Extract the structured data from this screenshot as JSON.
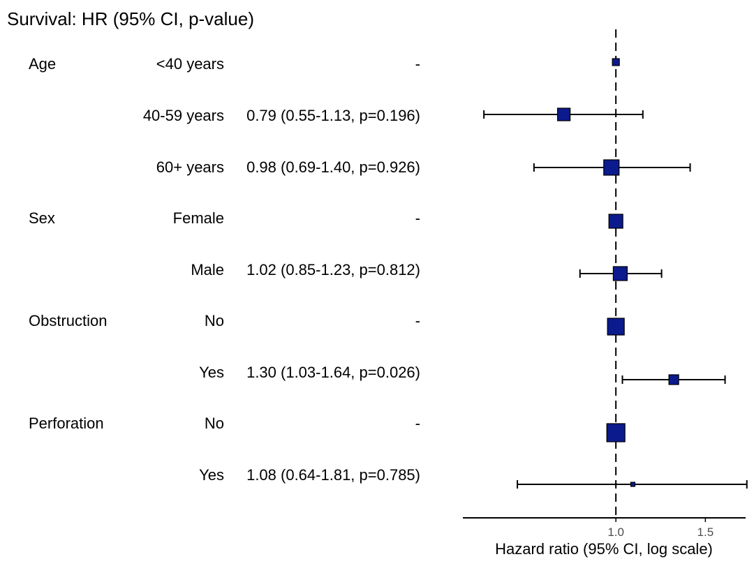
{
  "chart_data": {
    "type": "forest",
    "title": "Survival: HR (95% CI, p-value)",
    "xlabel": "Hazard ratio (95% CI, log scale)",
    "x_scale": "log",
    "xlim": [
      0.5,
      1.8
    ],
    "x_ticks": [
      1.0,
      1.5
    ],
    "x_tick_labels": [
      "1.0",
      "1.5"
    ],
    "reference_line": 1.0,
    "marker_color": "#0b1a8c",
    "rows": [
      {
        "variable": "Age",
        "level": "<40 years",
        "hr_text": "-",
        "hr": 1.0,
        "ci_low": null,
        "ci_high": null
      },
      {
        "variable": "",
        "level": "40-59 years",
        "hr_text": "0.79 (0.55-1.13, p=0.196)",
        "hr": 0.79,
        "ci_low": 0.55,
        "ci_high": 1.13
      },
      {
        "variable": "",
        "level": "60+ years",
        "hr_text": "0.98 (0.69-1.40, p=0.926)",
        "hr": 0.98,
        "ci_low": 0.69,
        "ci_high": 1.4
      },
      {
        "variable": "Sex",
        "level": "Female",
        "hr_text": "-",
        "hr": 1.0,
        "ci_low": null,
        "ci_high": null
      },
      {
        "variable": "",
        "level": "Male",
        "hr_text": "1.02 (0.85-1.23, p=0.812)",
        "hr": 1.02,
        "ci_low": 0.85,
        "ci_high": 1.23
      },
      {
        "variable": "Obstruction",
        "level": "No",
        "hr_text": "-",
        "hr": 1.0,
        "ci_low": null,
        "ci_high": null
      },
      {
        "variable": "",
        "level": "Yes",
        "hr_text": "1.30 (1.03-1.64, p=0.026)",
        "hr": 1.3,
        "ci_low": 1.03,
        "ci_high": 1.64
      },
      {
        "variable": "Perforation",
        "level": "No",
        "hr_text": "-",
        "hr": 1.0,
        "ci_low": null,
        "ci_high": null
      },
      {
        "variable": "",
        "level": "Yes",
        "hr_text": "1.08 (0.64-1.81, p=0.785)",
        "hr": 1.08,
        "ci_low": 0.64,
        "ci_high": 1.81
      }
    ]
  }
}
